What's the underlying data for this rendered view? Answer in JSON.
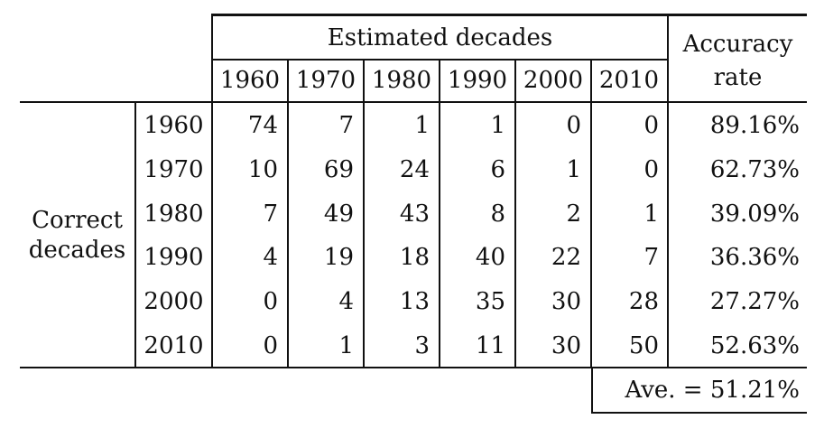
{
  "table": {
    "estimated_header": "Estimated decades",
    "accuracy_header_line1": "Accuracy",
    "accuracy_header_line2": "rate",
    "correct_label_line1": "Correct",
    "correct_label_line2": "decades",
    "col_headers": [
      "1960",
      "1970",
      "1980",
      "1990",
      "2000",
      "2010"
    ],
    "rows": [
      {
        "label": "1960",
        "values": [
          "74",
          "7",
          "1",
          "1",
          "0",
          "0"
        ],
        "rate": "89.16%"
      },
      {
        "label": "1970",
        "values": [
          "10",
          "69",
          "24",
          "6",
          "1",
          "0"
        ],
        "rate": "62.73%"
      },
      {
        "label": "1980",
        "values": [
          "7",
          "49",
          "43",
          "8",
          "2",
          "1"
        ],
        "rate": "39.09%"
      },
      {
        "label": "1990",
        "values": [
          "4",
          "19",
          "18",
          "40",
          "22",
          "7"
        ],
        "rate": "36.36%"
      },
      {
        "label": "2000",
        "values": [
          "0",
          "4",
          "13",
          "35",
          "30",
          "28"
        ],
        "rate": "27.27%"
      },
      {
        "label": "2010",
        "values": [
          "0",
          "1",
          "3",
          "11",
          "30",
          "50"
        ],
        "rate": "52.63%"
      }
    ],
    "average": "Ave. = 51.21%"
  }
}
